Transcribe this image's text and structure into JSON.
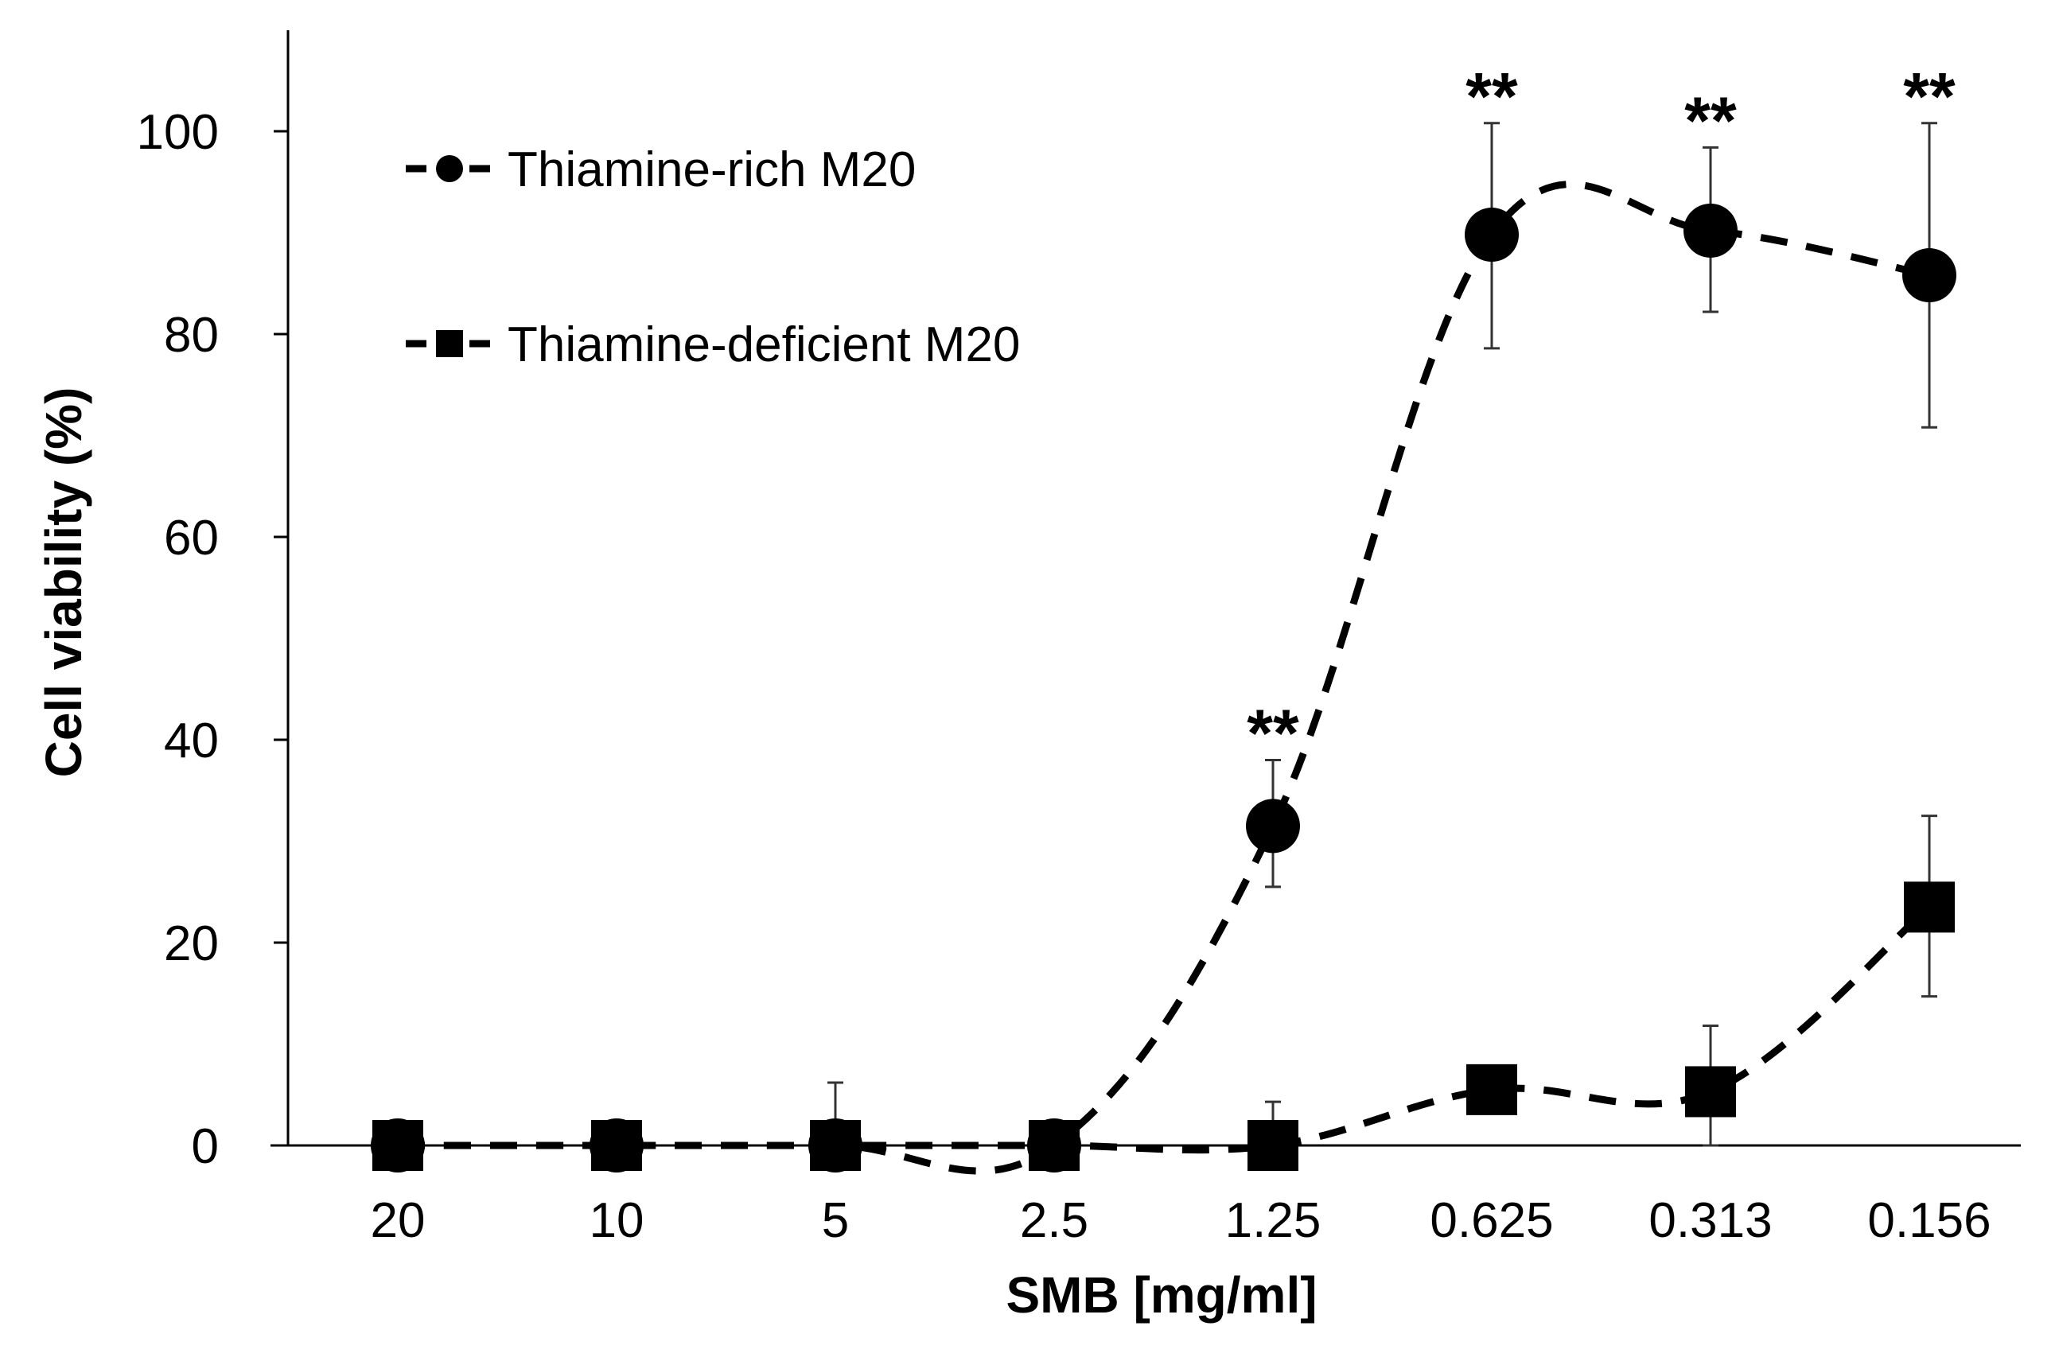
{
  "chart_data": {
    "type": "line",
    "title": "",
    "xlabel": "SMB [mg/ml]",
    "ylabel": "Cell viability (%)",
    "categories": [
      "20",
      "10",
      "5",
      "2.5",
      "1.25",
      "0.625",
      "0.313",
      "0.156"
    ],
    "y_ticks": [
      "0",
      "20",
      "40",
      "60",
      "80",
      "100"
    ],
    "ylim": [
      0,
      110
    ],
    "grid": false,
    "legend_position": "top-left",
    "series": [
      {
        "name": "Thiamine-rich M20",
        "marker": "circle",
        "line_style": "dashed",
        "color": "#000000",
        "values": [
          0,
          0,
          0,
          0,
          31.5,
          89.8,
          90.2,
          85.8
        ],
        "error_upper": [
          0,
          0,
          0,
          0,
          6.5,
          11.0,
          8.2,
          15.0
        ],
        "error_lower": [
          0,
          0,
          0,
          0,
          6.0,
          11.2,
          8.0,
          15.0
        ],
        "annotations": [
          "",
          "",
          "",
          "",
          "**",
          "**",
          "**",
          "**"
        ]
      },
      {
        "name": "Thiamine-deficient M20",
        "marker": "square",
        "line_style": "dashed",
        "color": "#000000",
        "values": [
          0,
          0,
          0,
          0,
          0,
          5.5,
          5.3,
          23.5
        ],
        "error_upper": [
          0,
          0,
          6.2,
          0,
          4.3,
          0,
          6.5,
          9.0
        ],
        "error_lower": [
          0,
          0,
          0,
          0,
          0,
          0,
          5.3,
          8.8
        ],
        "annotations": [
          "",
          "",
          "",
          "",
          "",
          "",
          "",
          ""
        ]
      }
    ]
  }
}
